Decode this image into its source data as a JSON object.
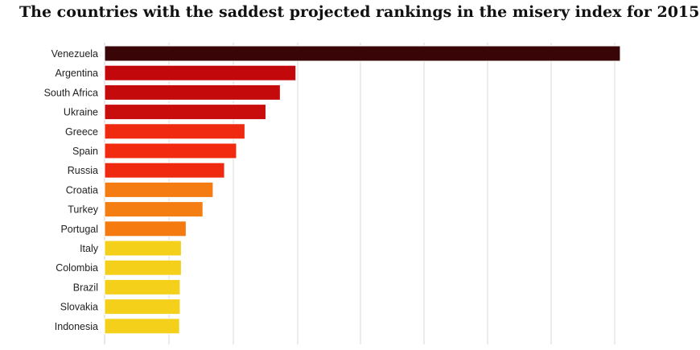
{
  "chart_data": {
    "type": "bar",
    "orientation": "horizontal",
    "title": "The countries with the saddest projected rankings in the misery index for 2015",
    "xlabel": "",
    "ylabel": "",
    "xlim": [
      0,
      95
    ],
    "grid": "vertical",
    "categories": [
      "Venezuela",
      "Argentina",
      "South Africa",
      "Ukraine",
      "Greece",
      "Spain",
      "Russia",
      "Croatia",
      "Turkey",
      "Portugal",
      "Italy",
      "Colombia",
      "Brazil",
      "Slovakia",
      "Indonesia"
    ],
    "values": [
      86.0,
      31.9,
      29.3,
      26.9,
      23.4,
      22.0,
      20.0,
      18.1,
      16.4,
      13.6,
      12.8,
      12.8,
      12.6,
      12.6,
      12.5
    ],
    "colors": [
      "#3a0507",
      "#c2080a",
      "#c40a0a",
      "#c90c0c",
      "#f02a10",
      "#f22a10",
      "#ef2a10",
      "#f47c12",
      "#f57e12",
      "#f57a10",
      "#f4d01a",
      "#f4d01a",
      "#f4d01a",
      "#f4d01a",
      "#f4d01a"
    ]
  }
}
